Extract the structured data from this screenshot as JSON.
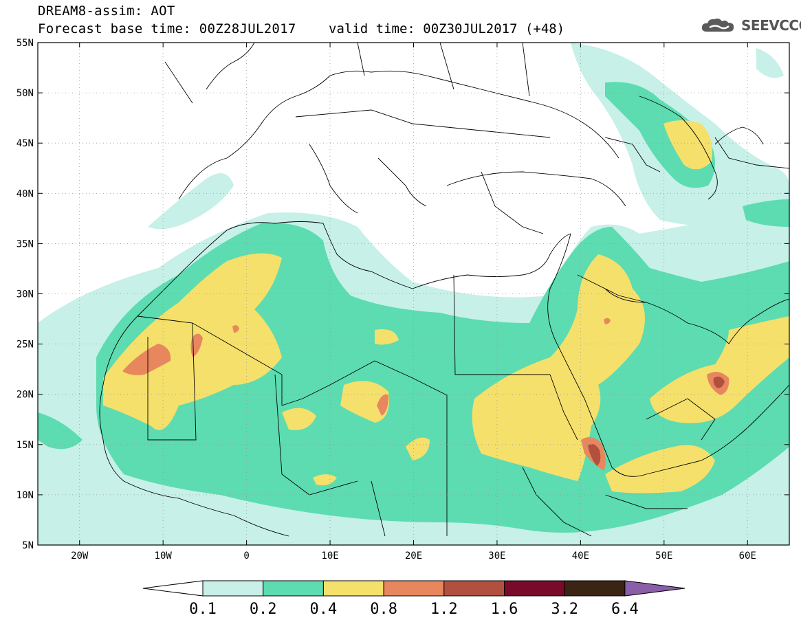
{
  "header": {
    "title": "DREAM8-assim: AOT",
    "base_time": "Forecast base time: 00Z28JUL2017",
    "valid_time": "valid time: 00Z30JUL2017 (+48)"
  },
  "logo": {
    "text": "SEEVCCC",
    "icon": "cloud-icon",
    "color": "#555555"
  },
  "map": {
    "lon_range": [
      -25,
      65
    ],
    "lat_range": [
      5,
      55
    ],
    "lat_ticks": [
      "55N",
      "50N",
      "45N",
      "40N",
      "35N",
      "30N",
      "25N",
      "20N",
      "15N",
      "10N",
      "5N"
    ],
    "lat_values": [
      55,
      50,
      45,
      40,
      35,
      30,
      25,
      20,
      15,
      10,
      5
    ],
    "lon_ticks": [
      "20W",
      "10W",
      "0",
      "10E",
      "20E",
      "30E",
      "40E",
      "50E",
      "60E"
    ],
    "lon_values": [
      -20,
      -10,
      0,
      10,
      20,
      30,
      40,
      50,
      60
    ]
  },
  "colorbar": {
    "levels": [
      "0.1",
      "0.2",
      "0.4",
      "0.8",
      "1.2",
      "1.6",
      "3.2",
      "6.4"
    ],
    "colors": [
      "#c6f0e8",
      "#5cdcb0",
      "#f5e06b",
      "#e8875e",
      "#b2503f",
      "#7a0a2a",
      "#3b2414"
    ],
    "under_color": "#ffffff",
    "over_color": "#8b5ea8"
  }
}
